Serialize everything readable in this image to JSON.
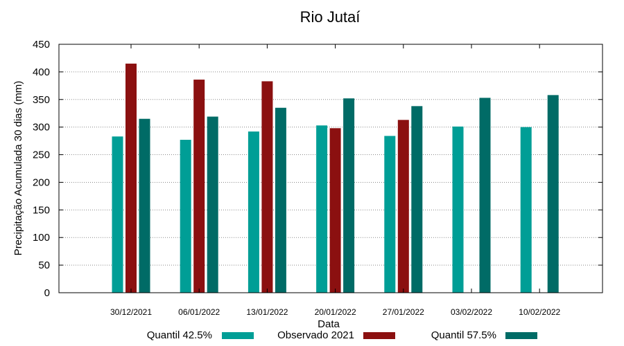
{
  "chart_data": {
    "type": "bar",
    "title": "Rio Jutaí",
    "xlabel": "Data",
    "ylabel": "Precipitação Acumulada 30 dias (mm)",
    "ylim": [
      0,
      450
    ],
    "yticks": [
      0,
      50,
      100,
      150,
      200,
      250,
      300,
      350,
      400,
      450
    ],
    "grid": true,
    "legend_position": "bottom",
    "categories": [
      "30/12/2021",
      "06/01/2022",
      "13/01/2022",
      "20/01/2022",
      "27/01/2022",
      "03/02/2022",
      "10/02/2022"
    ],
    "series": [
      {
        "name": "Quantil 42.5%",
        "color": "#009e96",
        "values": [
          283,
          277,
          292,
          303,
          284,
          301,
          300
        ]
      },
      {
        "name": "Observado 2021",
        "color": "#8b1010",
        "values": [
          415,
          386,
          383,
          298,
          313,
          null,
          null
        ]
      },
      {
        "name": "Quantil 57.5%",
        "color": "#006b66",
        "values": [
          315,
          319,
          335,
          352,
          338,
          353,
          358
        ]
      }
    ]
  }
}
